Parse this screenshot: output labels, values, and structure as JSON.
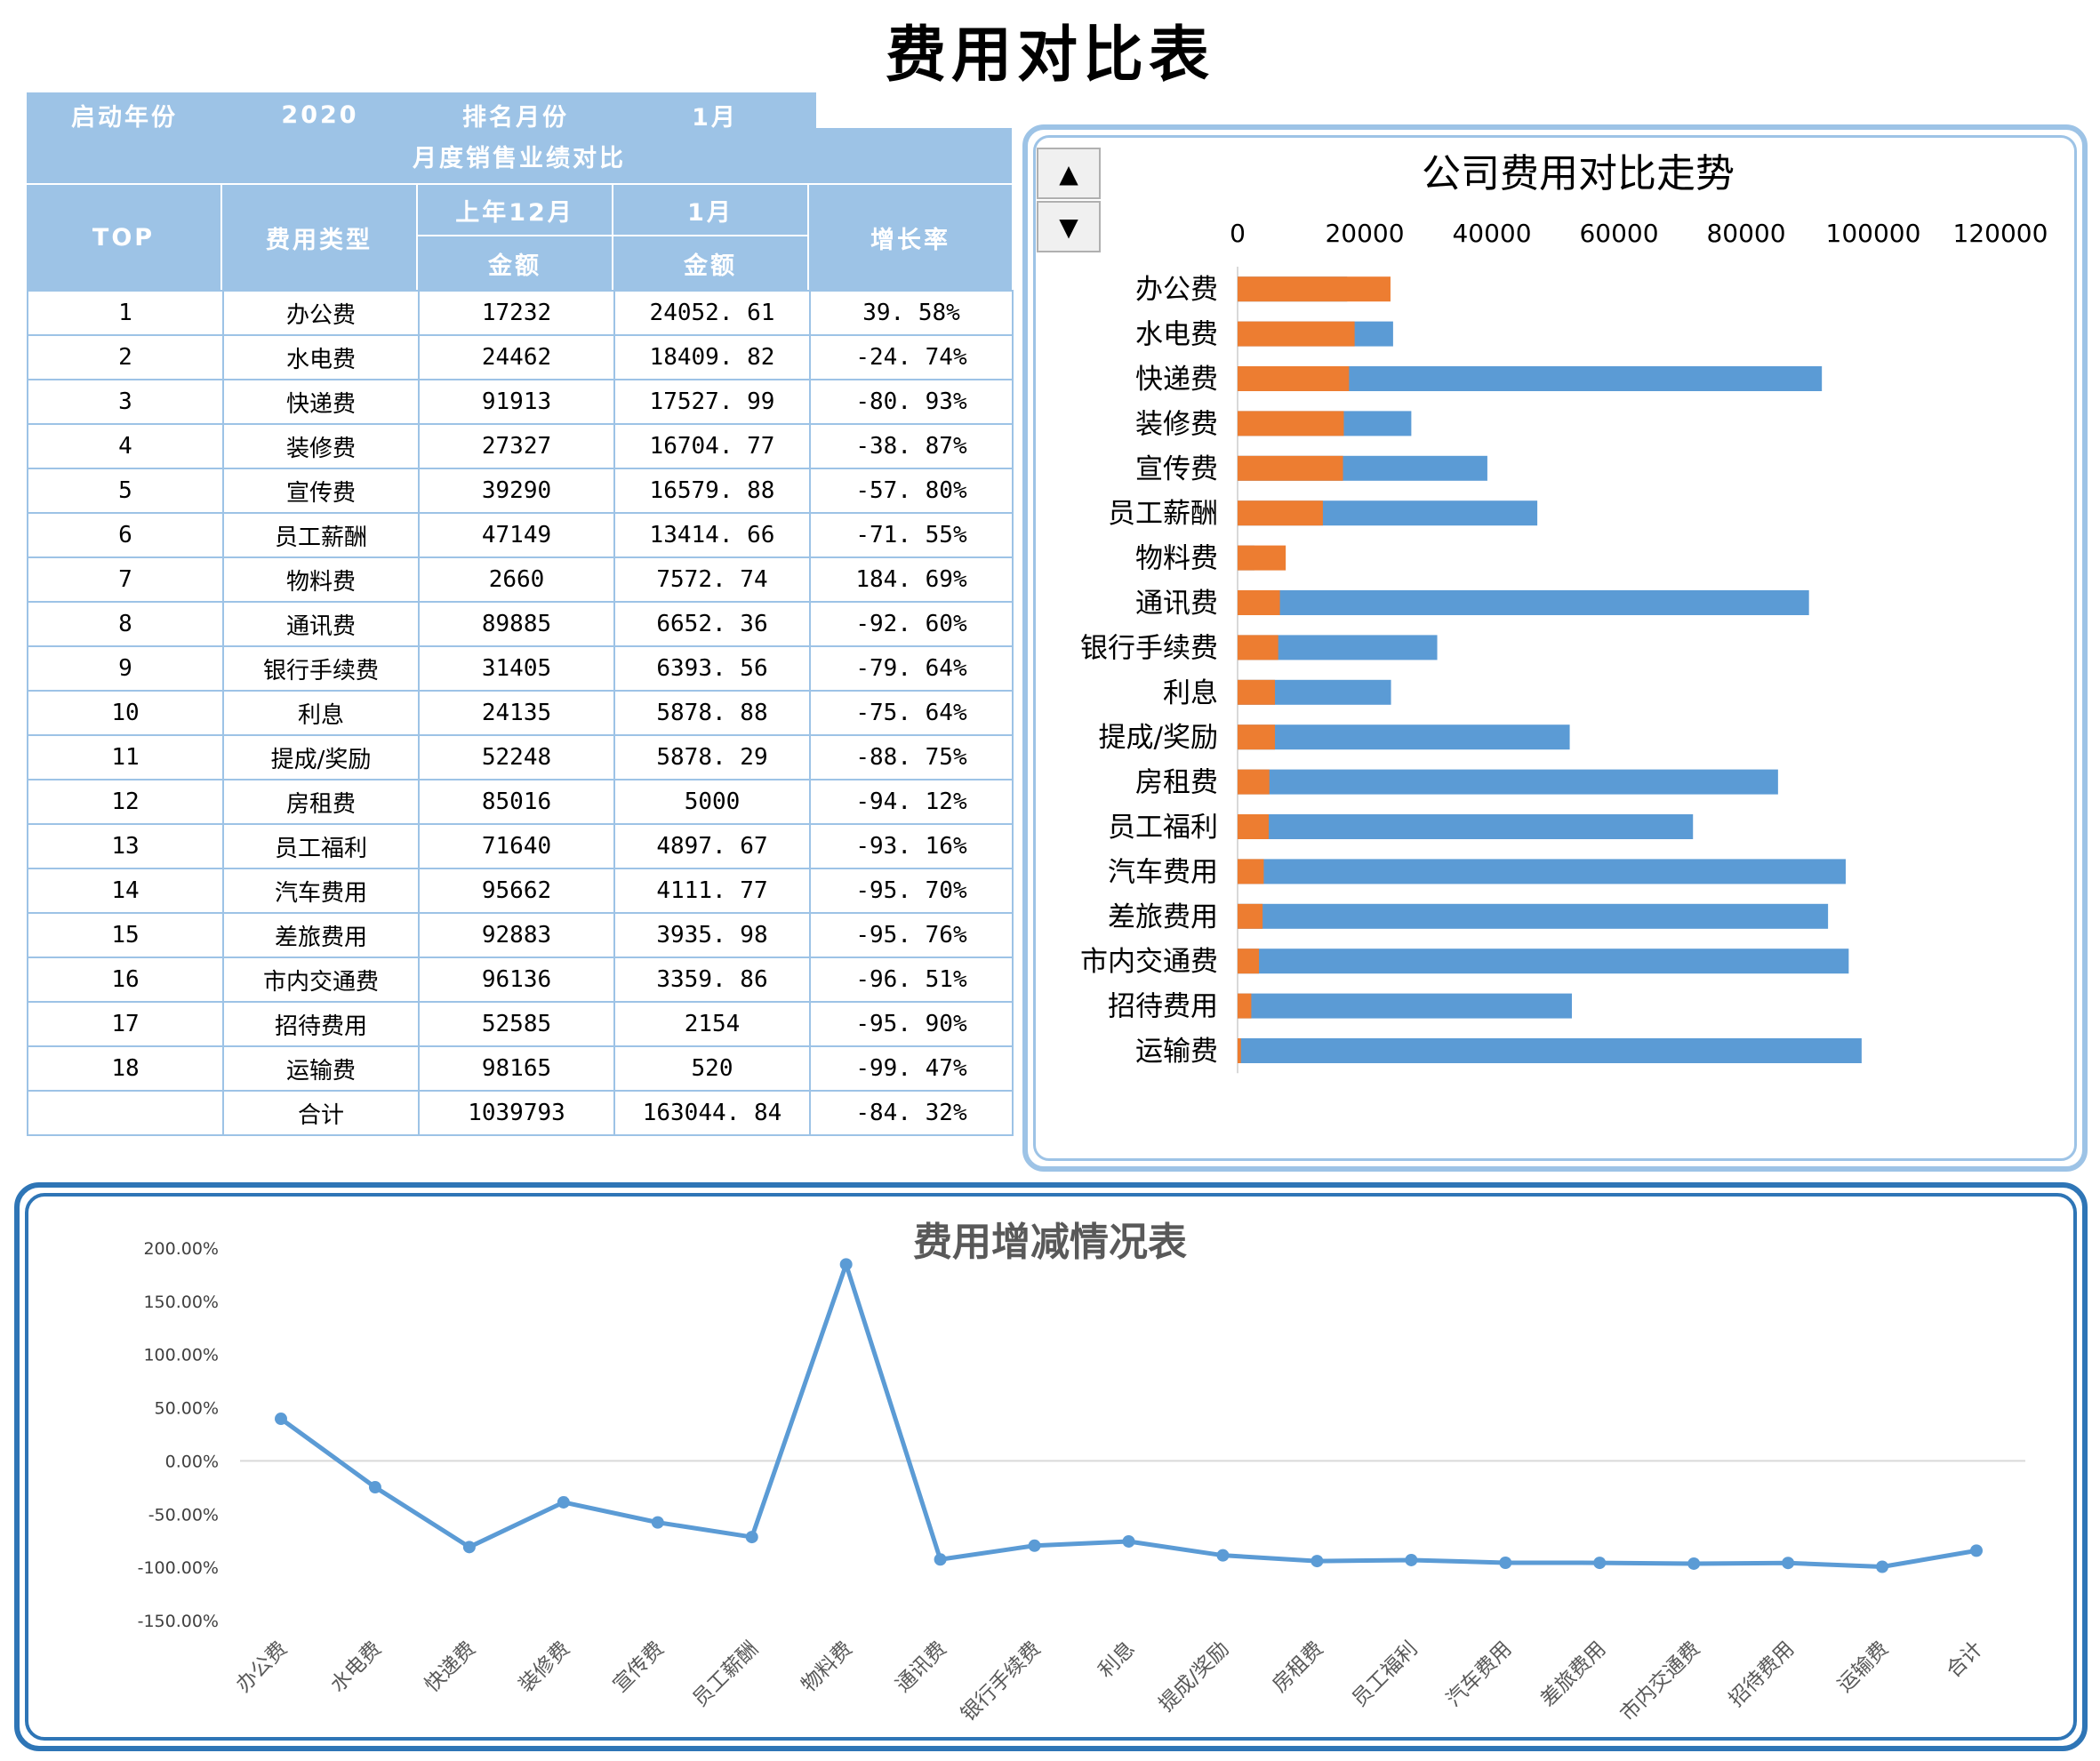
{
  "page_title": "费用对比表",
  "table": {
    "start_year_label": "启动年份",
    "start_year": "2020",
    "rank_month_label": "排名月份",
    "rank_month": "1月",
    "subtitle": "月度销售业绩对比",
    "col_top": "TOP",
    "col_type": "费用类型",
    "col_prev": "上年12月",
    "col_cur": "1月",
    "col_amount": "金额",
    "col_growth": "增长率",
    "rows": [
      {
        "top": "1",
        "type": "办公费",
        "prev": "17232",
        "cur": "24052. 61",
        "growth": "39. 58%"
      },
      {
        "top": "2",
        "type": "水电费",
        "prev": "24462",
        "cur": "18409. 82",
        "growth": "-24. 74%"
      },
      {
        "top": "3",
        "type": "快递费",
        "prev": "91913",
        "cur": "17527. 99",
        "growth": "-80. 93%"
      },
      {
        "top": "4",
        "type": "装修费",
        "prev": "27327",
        "cur": "16704. 77",
        "growth": "-38. 87%"
      },
      {
        "top": "5",
        "type": "宣传费",
        "prev": "39290",
        "cur": "16579. 88",
        "growth": "-57. 80%"
      },
      {
        "top": "6",
        "type": "员工薪酬",
        "prev": "47149",
        "cur": "13414. 66",
        "growth": "-71. 55%"
      },
      {
        "top": "7",
        "type": "物料费",
        "prev": "2660",
        "cur": "7572. 74",
        "growth": "184. 69%"
      },
      {
        "top": "8",
        "type": "通讯费",
        "prev": "89885",
        "cur": "6652. 36",
        "growth": "-92. 60%"
      },
      {
        "top": "9",
        "type": "银行手续费",
        "prev": "31405",
        "cur": "6393. 56",
        "growth": "-79. 64%"
      },
      {
        "top": "10",
        "type": "利息",
        "prev": "24135",
        "cur": "5878. 88",
        "growth": "-75. 64%"
      },
      {
        "top": "11",
        "type": "提成/奖励",
        "prev": "52248",
        "cur": "5878. 29",
        "growth": "-88. 75%"
      },
      {
        "top": "12",
        "type": "房租费",
        "prev": "85016",
        "cur": "5000",
        "growth": "-94. 12%"
      },
      {
        "top": "13",
        "type": "员工福利",
        "prev": "71640",
        "cur": "4897. 67",
        "growth": "-93. 16%"
      },
      {
        "top": "14",
        "type": "汽车费用",
        "prev": "95662",
        "cur": "4111. 77",
        "growth": "-95. 70%"
      },
      {
        "top": "15",
        "type": "差旅费用",
        "prev": "92883",
        "cur": "3935. 98",
        "growth": "-95. 76%"
      },
      {
        "top": "16",
        "type": "市内交通费",
        "prev": "96136",
        "cur": "3359. 86",
        "growth": "-96. 51%"
      },
      {
        "top": "17",
        "type": "招待费用",
        "prev": "52585",
        "cur": "2154",
        "growth": "-95. 90%"
      },
      {
        "top": "18",
        "type": "运输费",
        "prev": "98165",
        "cur": "520",
        "growth": "-99. 47%"
      }
    ],
    "total": {
      "top": "",
      "type": "合计",
      "prev": "1039793",
      "cur": "163044. 84",
      "growth": "-84. 32%"
    }
  },
  "spinner": {
    "up_icon": "triangle-up-icon",
    "down_icon": "triangle-down-icon"
  },
  "colors": {
    "header_bg": "#9dc3e6",
    "prev_series": "#5b9bd5",
    "cur_series": "#ed7d31",
    "line": "#5b9bd5",
    "panel_dark": "#2e75b6"
  },
  "chart_data": [
    {
      "type": "bar",
      "orientation": "horizontal",
      "stacked": false,
      "title": "公司费用对比走势",
      "xlim": [
        0,
        120000
      ],
      "x_ticks": [
        "0",
        "20000",
        "40000",
        "60000",
        "80000",
        "100000",
        "120000"
      ],
      "axis_position": "top",
      "categories": [
        "办公费",
        "水电费",
        "快递费",
        "装修费",
        "宣传费",
        "员工薪酬",
        "物料费",
        "通讯费",
        "银行手续费",
        "利息",
        "提成/奖励",
        "房租费",
        "员工福利",
        "汽车费用",
        "差旅费用",
        "市内交通费",
        "招待费用",
        "运输费"
      ],
      "series": [
        {
          "values": [
            17232,
            24462,
            91913,
            27327,
            39290,
            47149,
            2660,
            89885,
            31405,
            24135,
            52248,
            85016,
            71640,
            95662,
            92883,
            96136,
            52585,
            98165
          ]
        },
        {
          "values": [
            24052.61,
            18409.82,
            17527.99,
            16704.77,
            16579.88,
            13414.66,
            7572.74,
            6652.36,
            6393.56,
            5878.88,
            5878.29,
            5000,
            4897.67,
            4111.77,
            3935.98,
            3359.86,
            2154,
            520
          ]
        }
      ]
    },
    {
      "type": "line",
      "title": "费用增减情况表",
      "ylim": [
        -1.5,
        2.0
      ],
      "y_ticks": [
        "200.00%",
        "150.00%",
        "100.00%",
        "50.00%",
        "0.00%",
        "-50.00%",
        "-100.00%",
        "-150.00%"
      ],
      "categories": [
        "办公费",
        "水电费",
        "快递费",
        "装修费",
        "宣传费",
        "员工薪酬",
        "物料费",
        "通讯费",
        "银行手续费",
        "利息",
        "提成/奖励",
        "房租费",
        "员工福利",
        "汽车费用",
        "差旅费用",
        "市内交通费",
        "招待费用",
        "运输费",
        "合计"
      ],
      "series": [
        {
          "values": [
            0.3958,
            -0.2474,
            -0.8093,
            -0.3887,
            -0.578,
            -0.7155,
            1.8469,
            -0.926,
            -0.7964,
            -0.7564,
            -0.8875,
            -0.9412,
            -0.9316,
            -0.957,
            -0.9576,
            -0.9651,
            -0.959,
            -0.9947,
            -0.8432
          ]
        }
      ]
    }
  ]
}
